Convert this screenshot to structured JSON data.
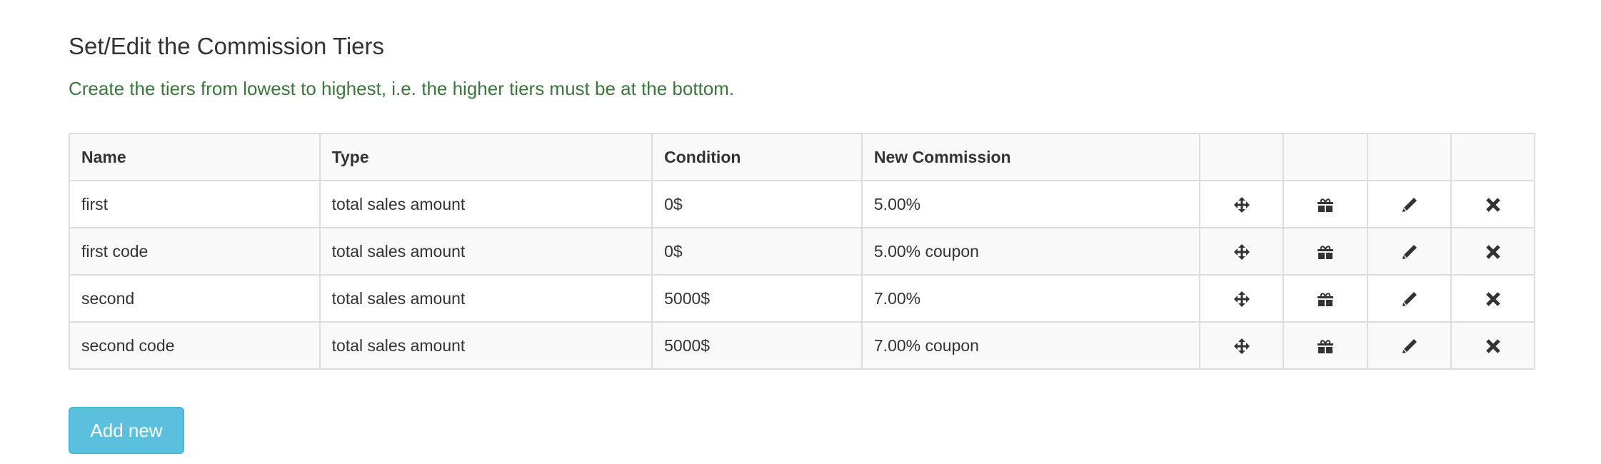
{
  "heading": "Set/Edit the Commission Tiers",
  "hint": "Create the tiers from lowest to highest, i.e. the higher tiers must be at the bottom.",
  "table": {
    "headers": [
      "Name",
      "Type",
      "Condition",
      "New Commission"
    ],
    "rows": [
      {
        "name": "first",
        "type": "total sales amount",
        "condition": "0$",
        "commission": "5.00%"
      },
      {
        "name": "first code",
        "type": "total sales amount",
        "condition": "0$",
        "commission": "5.00% coupon"
      },
      {
        "name": "second",
        "type": "total sales amount",
        "condition": "5000$",
        "commission": "7.00%"
      },
      {
        "name": "second code",
        "type": "total sales amount",
        "condition": "5000$",
        "commission": "7.00% coupon"
      }
    ],
    "row_icons": [
      "move-icon",
      "gift-icon",
      "pencil-icon",
      "remove-icon"
    ]
  },
  "add_button": "Add new",
  "colors": {
    "hint": "#3c763d",
    "button": "#5bc0de"
  }
}
